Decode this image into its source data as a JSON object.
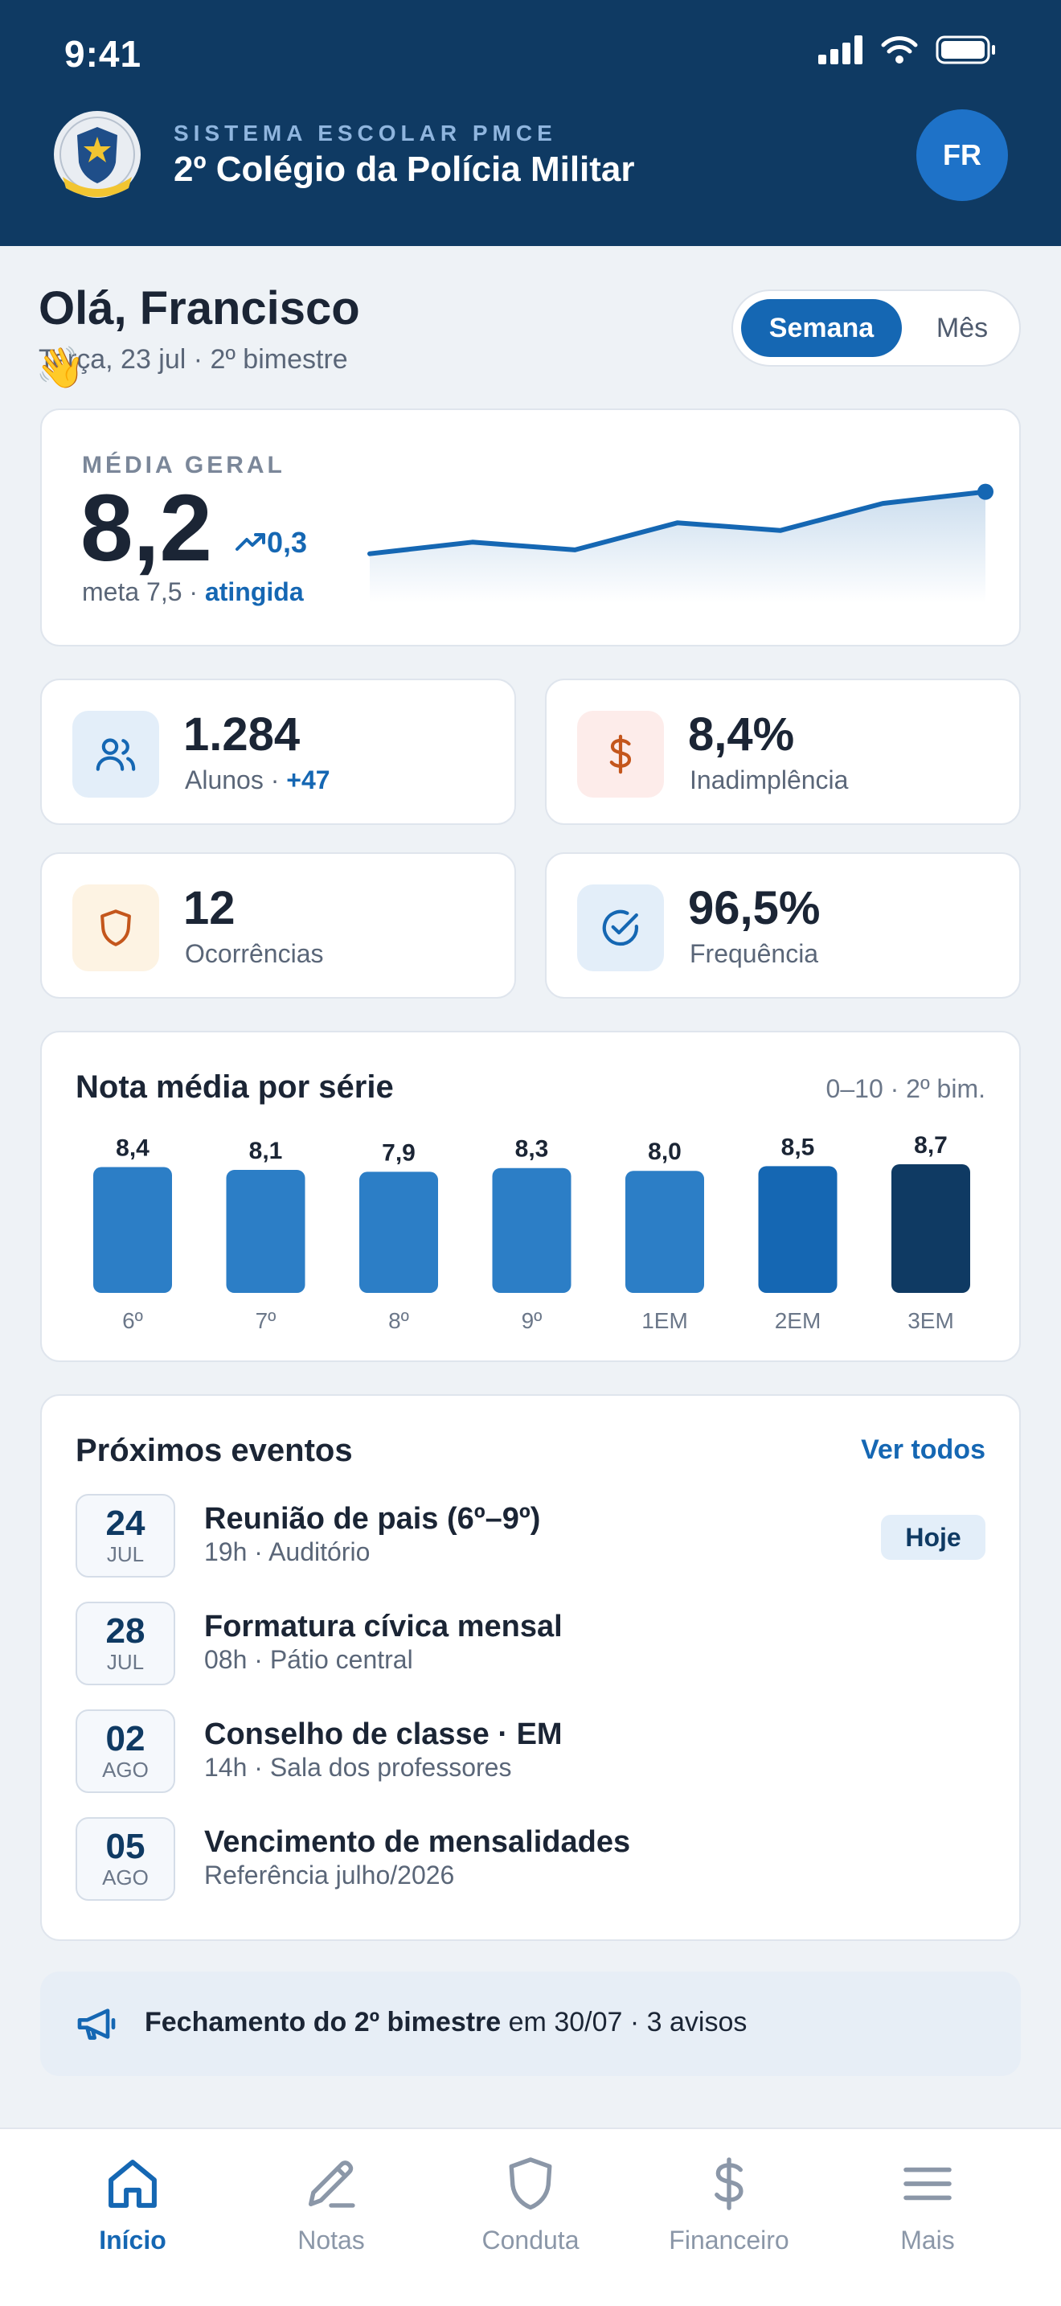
{
  "status_bar": {
    "time": "9:41"
  },
  "header": {
    "subtitle": "SISTEMA ESCOLAR PMCE",
    "title": "2º Colégio da Polícia Militar",
    "avatar_initials": "FR"
  },
  "greeting": {
    "title": "Olá, Francisco",
    "date": "Terça, 23 jul · 2º bimestre",
    "emoji": "👋"
  },
  "period_toggle": {
    "selected": "Semana",
    "other": "Mês"
  },
  "average": {
    "label": "MÉDIA GERAL",
    "value": "8,2",
    "delta": "0,3",
    "meta_prefix": "meta 7,5 · ",
    "meta_status": "atingida",
    "trend": [
      7.6,
      7.75,
      7.65,
      8.0,
      7.9,
      8.25,
      8.4
    ]
  },
  "kpis": [
    {
      "value": "1.284",
      "label": "Alunos · ",
      "extra": "+47",
      "icon": "users-icon",
      "color": "#1567b3",
      "bg": "#e3eef9"
    },
    {
      "value": "8,4%",
      "label": "Inadimplência",
      "extra": "",
      "icon": "dollar-icon",
      "color": "#c4561c",
      "bg": "#fdecea"
    },
    {
      "value": "12",
      "label": "Ocorrências",
      "extra": "",
      "icon": "shield-icon",
      "color": "#c4561c",
      "bg": "#fdf3e3"
    },
    {
      "value": "96,5%",
      "label": "Frequência",
      "extra": "",
      "icon": "check-circle-icon",
      "color": "#1567b3",
      "bg": "#e3eef9"
    }
  ],
  "grades_chart": {
    "title": "Nota média por série",
    "aside": "0–10 · 2º bim.",
    "chart_data": {
      "type": "bar",
      "categories": [
        "6º",
        "7º",
        "8º",
        "9º",
        "1EM",
        "2EM",
        "3EM"
      ],
      "values": [
        8.4,
        8.1,
        7.9,
        8.3,
        8.0,
        8.5,
        8.7
      ],
      "value_labels": [
        "8,4",
        "8,1",
        "7,9",
        "8,3",
        "8,0",
        "8,5",
        "8,7"
      ],
      "ylim": [
        0,
        10
      ],
      "colors": [
        "#2c7ec6",
        "#2c7ec6",
        "#2c7ec6",
        "#2c7ec6",
        "#2c7ec6",
        "#1567b3",
        "#0f3a63"
      ]
    }
  },
  "events": {
    "title": "Próximos eventos",
    "link": "Ver todos",
    "today_badge": "Hoje",
    "items": [
      {
        "day": "24",
        "month": "JUL",
        "title": "Reunião de pais (6º–9º)",
        "sub": "19h · Auditório"
      },
      {
        "day": "28",
        "month": "JUL",
        "title": "Formatura cívica mensal",
        "sub": "08h · Pátio central"
      },
      {
        "day": "02",
        "month": "AGO",
        "title": "Conselho de classe · EM",
        "sub": "14h · Sala dos professores"
      },
      {
        "day": "05",
        "month": "AGO",
        "title": "Vencimento de mensalidades",
        "sub": "Referência julho/2026"
      }
    ]
  },
  "notice": {
    "bold": "Fechamento do 2º bimestre",
    "rest": " em 30/07 · 3 avisos"
  },
  "tabbar": {
    "items": [
      {
        "label": "Início",
        "icon": "home-icon"
      },
      {
        "label": "Notas",
        "icon": "pencil-icon"
      },
      {
        "label": "Conduta",
        "icon": "shield-icon"
      },
      {
        "label": "Financeiro",
        "icon": "dollar-icon"
      },
      {
        "label": "Mais",
        "icon": "menu-icon"
      }
    ],
    "active": "Início"
  }
}
